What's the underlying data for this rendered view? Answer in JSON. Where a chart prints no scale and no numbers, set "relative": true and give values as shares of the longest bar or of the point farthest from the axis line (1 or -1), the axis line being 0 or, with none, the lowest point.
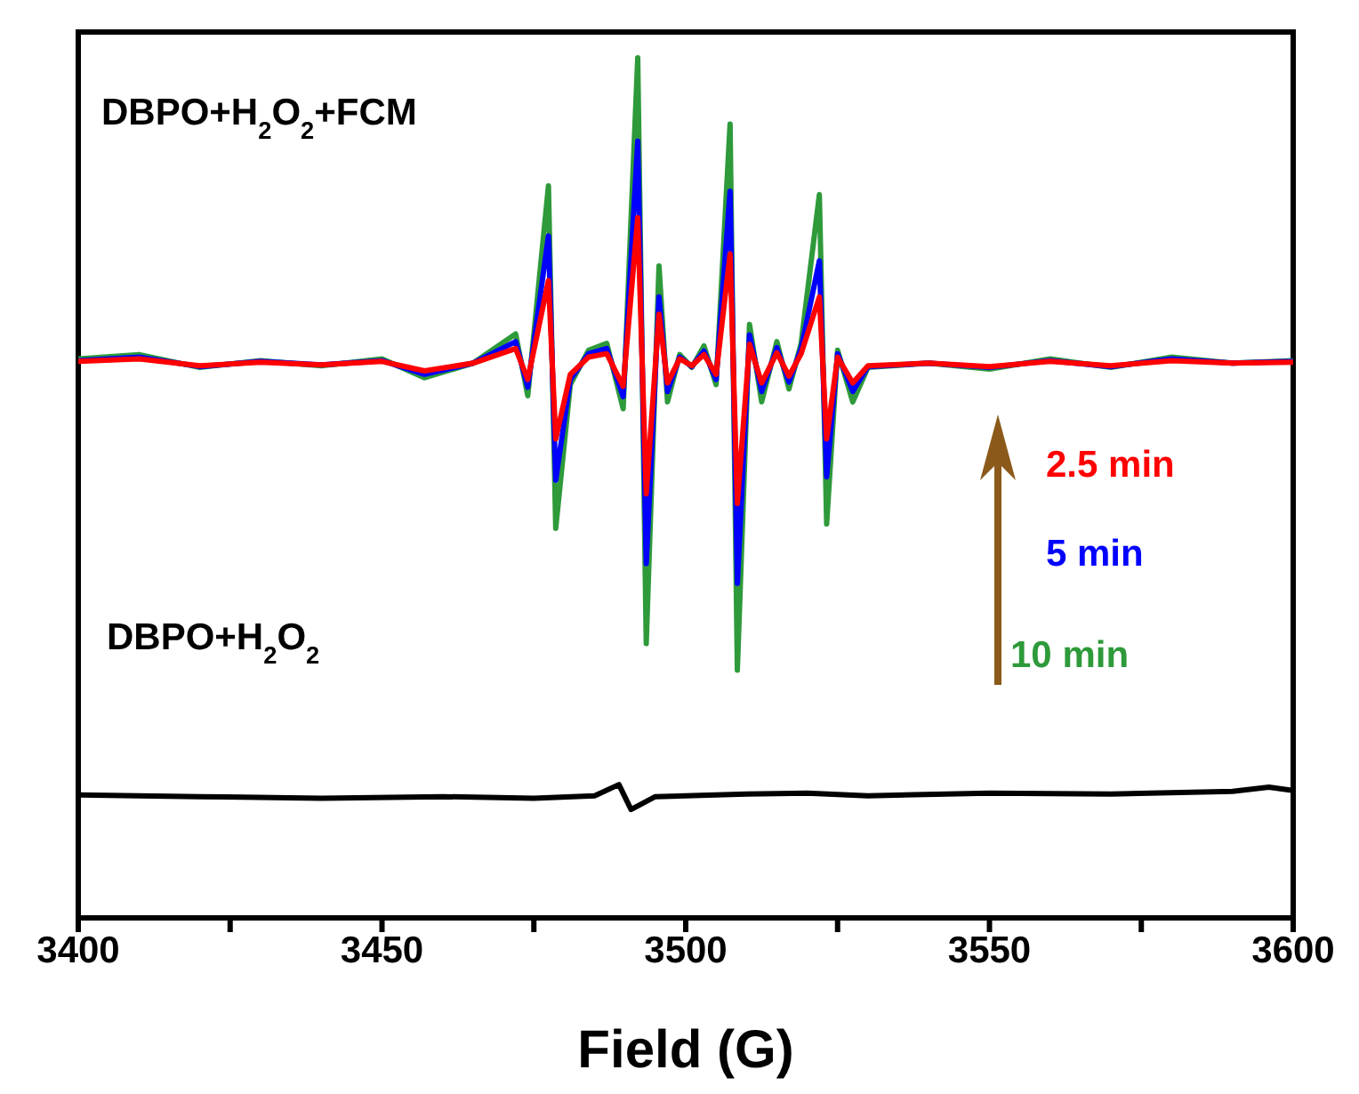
{
  "chart_data": {
    "type": "line",
    "relative": true,
    "xlabel": "Field (G)",
    "xlim": [
      3400,
      3600
    ],
    "xticks": [
      3400,
      {
        "value": 3425,
        "label": null
      },
      3450,
      {
        "value": 3475,
        "label": null
      },
      3500,
      {
        "value": 3525,
        "label": null
      },
      3550,
      {
        "value": 3575,
        "label": null
      },
      3600
    ],
    "grid": false,
    "marker": "none",
    "line_style": "solid",
    "annotations": [
      "DBPO+H$_{2}$O$_{2}$+FCM",
      "DBPO+H$_{2}$O$_{2}$"
    ],
    "series": [
      {
        "name": "2.5 min",
        "color": "#ff0000",
        "x": [
          3400,
          3410,
          3420,
          3430,
          3440,
          3450,
          3457,
          3465,
          3472,
          3474,
          3477.4,
          3478.6,
          3481,
          3484,
          3487,
          3489.7,
          3492.1,
          3493.5,
          3495.6,
          3497,
          3499,
          3501,
          3503,
          3505,
          3507.3,
          3508.5,
          3510.5,
          3512.5,
          3515,
          3517,
          3519,
          3522,
          3523.2,
          3525,
          3527.5,
          3530,
          3540,
          3550,
          3560,
          3570,
          3580,
          3590,
          3600
        ],
        "values": [
          0.647,
          0.65,
          0.642,
          0.646,
          0.643,
          0.647,
          0.636,
          0.645,
          0.662,
          0.626,
          0.741,
          0.557,
          0.632,
          0.652,
          0.656,
          0.618,
          0.814,
          0.493,
          0.702,
          0.622,
          0.65,
          0.642,
          0.655,
          0.632,
          0.772,
          0.482,
          0.667,
          0.622,
          0.657,
          0.63,
          0.656,
          0.722,
          0.557,
          0.652,
          0.622,
          0.642,
          0.645,
          0.641,
          0.647,
          0.642,
          0.648,
          0.645,
          0.646
        ]
      },
      {
        "name": "5 min",
        "color": "#0000ff",
        "x": [
          3400,
          3410,
          3420,
          3430,
          3440,
          3450,
          3457,
          3465,
          3472,
          3474,
          3477.4,
          3478.6,
          3481,
          3484,
          3487,
          3489.7,
          3492.1,
          3493.5,
          3495.6,
          3497,
          3499,
          3501,
          3503,
          3505,
          3507.3,
          3508.5,
          3510.5,
          3512.5,
          3515,
          3517,
          3519,
          3522,
          3523.2,
          3525,
          3527.5,
          3530,
          3540,
          3550,
          3560,
          3570,
          3580,
          3590,
          3600
        ],
        "values": [
          0.648,
          0.652,
          0.641,
          0.647,
          0.643,
          0.648,
          0.632,
          0.645,
          0.67,
          0.617,
          0.793,
          0.509,
          0.626,
          0.656,
          0.662,
          0.606,
          0.903,
          0.412,
          0.722,
          0.612,
          0.652,
          0.641,
          0.659,
          0.626,
          0.845,
          0.389,
          0.678,
          0.612,
          0.663,
          0.623,
          0.662,
          0.764,
          0.513,
          0.656,
          0.612,
          0.641,
          0.645,
          0.64,
          0.648,
          0.641,
          0.65,
          0.645,
          0.647
        ]
      },
      {
        "name": "10 min",
        "color": "#2e9a3a",
        "x": [
          3400,
          3410,
          3420,
          3430,
          3440,
          3450,
          3457,
          3465,
          3472,
          3474,
          3477.4,
          3478.6,
          3481,
          3484,
          3487,
          3489.7,
          3492.1,
          3493.5,
          3495.6,
          3497,
          3499,
          3501,
          3503,
          3505,
          3507.3,
          3508.5,
          3510.5,
          3512.5,
          3515,
          3517,
          3519,
          3522,
          3523.2,
          3525,
          3527.5,
          3530,
          3540,
          3550,
          3560,
          3570,
          3580,
          3590,
          3600
        ],
        "values": [
          0.65,
          0.655,
          0.64,
          0.648,
          0.642,
          0.65,
          0.628,
          0.645,
          0.679,
          0.607,
          0.851,
          0.453,
          0.62,
          0.66,
          0.668,
          0.592,
          1.0,
          0.319,
          0.758,
          0.6,
          0.655,
          0.64,
          0.665,
          0.62,
          0.923,
          0.288,
          0.69,
          0.6,
          0.67,
          0.615,
          0.668,
          0.841,
          0.458,
          0.66,
          0.6,
          0.64,
          0.645,
          0.638,
          0.65,
          0.64,
          0.652,
          0.645,
          0.648
        ]
      },
      {
        "color": "#000000",
        "x": [
          3400,
          3420,
          3440,
          3460,
          3475,
          3485,
          3489,
          3491,
          3495,
          3510,
          3520,
          3530,
          3550,
          3570,
          3590,
          3596,
          3600
        ],
        "values": [
          0.143,
          0.141,
          0.139,
          0.141,
          0.139,
          0.142,
          0.155,
          0.126,
          0.141,
          0.144,
          0.145,
          0.142,
          0.145,
          0.144,
          0.147,
          0.152,
          0.148
        ]
      }
    ]
  }
}
